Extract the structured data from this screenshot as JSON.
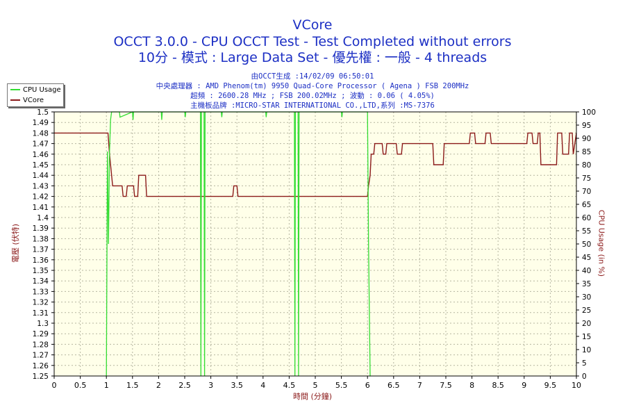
{
  "header": {
    "title": "VCore",
    "line2": "OCCT 3.0.0 - CPU OCCT Test - Test Completed without errors",
    "line3": "10分 - 模式 : Large Data Set - 優先權 : 一般 - 4 threads",
    "info1": "由OCCT生成 :14/02/09 06:50:01",
    "info2": "中央處理器 : AMD Phenom(tm) 9950 Quad-Core Processor ( Agena ) FSB 200MHz",
    "info3": "超頻 : 2600.28 MHz ; FSB 200.02MHz ; 波動 : 0.06 ( 4.05%)",
    "info4": "主機板品牌 :MICRO-STAR INTERNATIONAL CO.,LTD,系列 :MS-7376"
  },
  "legend": [
    {
      "label": "CPU Usage",
      "color": "#33dd33"
    },
    {
      "label": "VCore",
      "color": "#8b1a1a"
    }
  ],
  "chart_data": {
    "type": "line",
    "xlabel": "時間 (分鐘)",
    "ylabel_left": "電壓 (伏特)",
    "ylabel_right": "CPU Usage (in %)",
    "xlim": [
      0,
      10
    ],
    "ylim_left": [
      1.25,
      1.5
    ],
    "ylim_right": [
      0,
      100
    ],
    "x_ticks": [
      "0",
      "0.5",
      "1",
      "1.5",
      "2",
      "2.5",
      "3",
      "3.5",
      "4",
      "4.5",
      "5",
      "5.5",
      "6",
      "6.5",
      "7",
      "7.5",
      "8",
      "8.5",
      "9",
      "9.5",
      "10"
    ],
    "y_left_ticks": [
      "1.25",
      "1.26",
      "1.27",
      "1.28",
      "1.29",
      "1.3",
      "1.31",
      "1.32",
      "1.33",
      "1.34",
      "1.35",
      "1.36",
      "1.37",
      "1.38",
      "1.39",
      "1.4",
      "1.41",
      "1.42",
      "1.43",
      "1.44",
      "1.45",
      "1.46",
      "1.47",
      "1.48",
      "1.49",
      "1.5"
    ],
    "y_right_ticks": [
      "0",
      "5",
      "10",
      "15",
      "20",
      "25",
      "30",
      "35",
      "40",
      "45",
      "50",
      "55",
      "60",
      "65",
      "70",
      "75",
      "80",
      "85",
      "90",
      "95",
      "100"
    ],
    "grid": true,
    "series": [
      {
        "name": "VCore",
        "axis": "left",
        "color": "#8b1a1a",
        "x": [
          0,
          1.03,
          1.06,
          1.08,
          1.1,
          1.12,
          1.15,
          1.3,
          1.32,
          1.38,
          1.4,
          1.52,
          1.54,
          1.6,
          1.62,
          1.75,
          1.77,
          3.42,
          3.44,
          3.5,
          3.52,
          6.0,
          6.02,
          6.05,
          6.07,
          6.12,
          6.14,
          6.28,
          6.3,
          6.35,
          6.37,
          6.55,
          6.57,
          6.65,
          6.67,
          7.25,
          7.27,
          7.45,
          7.47,
          7.6,
          7.62,
          7.95,
          7.97,
          8.05,
          8.07,
          8.25,
          8.27,
          8.35,
          8.37,
          9.05,
          9.07,
          9.15,
          9.17,
          9.25,
          9.27,
          9.3,
          9.32,
          9.62,
          9.64,
          9.72,
          9.74,
          9.85,
          9.87,
          9.92,
          9.94,
          10.0
        ],
        "y": [
          1.48,
          1.48,
          1.46,
          1.45,
          1.44,
          1.43,
          1.43,
          1.43,
          1.42,
          1.42,
          1.43,
          1.43,
          1.42,
          1.42,
          1.44,
          1.44,
          1.42,
          1.42,
          1.43,
          1.43,
          1.42,
          1.42,
          1.43,
          1.44,
          1.46,
          1.46,
          1.47,
          1.47,
          1.46,
          1.46,
          1.47,
          1.47,
          1.46,
          1.46,
          1.47,
          1.47,
          1.45,
          1.45,
          1.47,
          1.47,
          1.47,
          1.47,
          1.48,
          1.48,
          1.47,
          1.47,
          1.48,
          1.48,
          1.47,
          1.47,
          1.48,
          1.48,
          1.47,
          1.47,
          1.48,
          1.48,
          1.45,
          1.45,
          1.48,
          1.48,
          1.46,
          1.46,
          1.48,
          1.48,
          1.46,
          1.48
        ]
      },
      {
        "name": "CPU Usage",
        "axis": "right",
        "color": "#33dd33",
        "x": [
          0.98,
          1.0,
          1.02,
          1.04,
          1.06,
          1.08,
          1.1,
          1.12,
          1.2,
          1.25,
          1.26,
          1.5,
          1.51,
          1.52,
          1.8,
          2.05,
          2.06,
          2.07,
          2.5,
          2.51,
          2.52,
          2.8,
          2.81,
          2.82,
          2.87,
          2.88,
          2.89,
          3.2,
          3.21,
          3.22,
          4.05,
          4.06,
          4.07,
          4.6,
          4.61,
          4.62,
          4.67,
          4.68,
          4.69,
          5.5,
          5.51,
          5.52,
          6.0,
          6.02,
          6.05,
          6.06
        ],
        "y": [
          0,
          0,
          85,
          50,
          85,
          97,
          100,
          100,
          100,
          100,
          98,
          100,
          97,
          100,
          100,
          100,
          97,
          100,
          100,
          98,
          100,
          100,
          0,
          100,
          100,
          0,
          100,
          100,
          98,
          100,
          100,
          98,
          100,
          100,
          0,
          100,
          100,
          0,
          100,
          100,
          98,
          100,
          100,
          50,
          0,
          0
        ]
      }
    ]
  }
}
